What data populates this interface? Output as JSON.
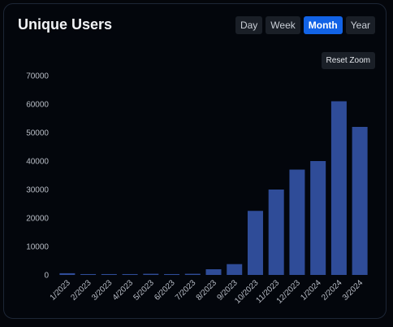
{
  "card": {
    "title": "Unique Users"
  },
  "toggles": {
    "day": "Day",
    "week": "Week",
    "month": "Month",
    "year": "Year",
    "selected": "Month"
  },
  "reset_zoom_label": "Reset Zoom",
  "colors": {
    "bar": "#2f4c98",
    "active_toggle": "#1263e6",
    "background": "#03060c"
  },
  "chart_data": {
    "type": "bar",
    "title": "Unique Users",
    "xlabel": "",
    "ylabel": "",
    "categories": [
      "1/2023",
      "2/2023",
      "3/2023",
      "4/2023",
      "5/2023",
      "6/2023",
      "7/2023",
      "8/2023",
      "9/2023",
      "10/2023",
      "11/2023",
      "12/2023",
      "1/2024",
      "2/2024",
      "3/2024"
    ],
    "values": [
      600,
      300,
      300,
      300,
      400,
      300,
      400,
      2000,
      3800,
      22500,
      30000,
      37000,
      40000,
      61000,
      52000
    ],
    "ylim": [
      0,
      70000
    ],
    "yticks": [
      "0",
      "10000",
      "20000",
      "30000",
      "40000",
      "50000",
      "60000",
      "70000"
    ],
    "grid": false,
    "legend": "none"
  }
}
